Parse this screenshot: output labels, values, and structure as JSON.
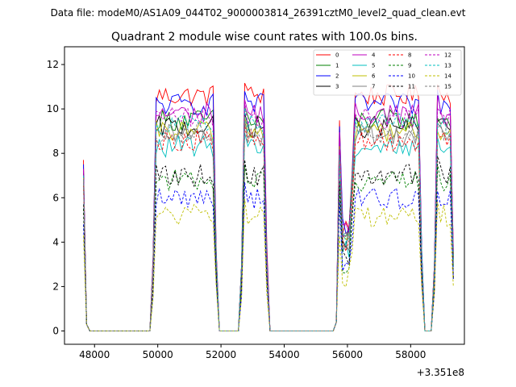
{
  "chart_data": {
    "type": "line",
    "suptitle": "Data file: modeM0/AS1A09_044T02_9000003814_26391cztM0_level2_quad_clean.evt",
    "title": "Quadrant 2 module wise count rates with 100.0s bins.",
    "xlabel": "",
    "ylabel": "",
    "x_offset_text": "+3.351e8",
    "xlim": [
      47050,
      59700
    ],
    "ylim": [
      -0.6,
      12.8
    ],
    "x_ticks": [
      48000,
      50000,
      52000,
      54000,
      56000,
      58000
    ],
    "y_ticks": [
      0,
      2,
      4,
      6,
      8,
      10,
      12
    ],
    "legend_location": "top-right",
    "legend_columns": 4,
    "segments": [
      {
        "start": 47650,
        "end": 47750,
        "edge": "start"
      },
      {
        "start": 49850,
        "end": 51850,
        "edge": "both"
      },
      {
        "start": 52650,
        "end": 53450,
        "edge": "both"
      },
      {
        "start": 55650,
        "end": 58350,
        "edge": "both"
      },
      {
        "start": 58750,
        "end": 59350,
        "edge": "both"
      }
    ],
    "series": [
      {
        "name": "0",
        "color": "#ff0000",
        "dash": "solid",
        "level": 10.6,
        "first": 7.7
      },
      {
        "name": "1",
        "color": "#008000",
        "dash": "solid",
        "level": 9.5,
        "first": 7.0
      },
      {
        "name": "2",
        "color": "#0000ff",
        "dash": "solid",
        "level": 10.2,
        "first": 7.5
      },
      {
        "name": "3",
        "color": "#000000",
        "dash": "solid",
        "level": 9.2,
        "first": 7.2
      },
      {
        "name": "4",
        "color": "#bf00bf",
        "dash": "solid",
        "level": 9.8,
        "first": 7.3
      },
      {
        "name": "5",
        "color": "#00bfbf",
        "dash": "solid",
        "level": 8.3,
        "first": 6.8
      },
      {
        "name": "6",
        "color": "#bfbf00",
        "dash": "solid",
        "level": 9.0,
        "first": 6.9
      },
      {
        "name": "7",
        "color": "#808080",
        "dash": "solid",
        "level": 8.8,
        "first": 6.7
      },
      {
        "name": "8",
        "color": "#ff0000",
        "dash": "dashed",
        "level": 8.6,
        "first": 6.6
      },
      {
        "name": "9",
        "color": "#008000",
        "dash": "dashed",
        "level": 6.8,
        "first": 5.5
      },
      {
        "name": "10",
        "color": "#0000ff",
        "dash": "dashed",
        "level": 6.0,
        "first": 4.8
      },
      {
        "name": "11",
        "color": "#000000",
        "dash": "dashed",
        "level": 7.0,
        "first": 5.7
      },
      {
        "name": "12",
        "color": "#bf00bf",
        "dash": "dashed",
        "level": 9.6,
        "first": 7.2
      },
      {
        "name": "13",
        "color": "#00bfbf",
        "dash": "dashed",
        "level": 9.3,
        "first": 7.0
      },
      {
        "name": "14",
        "color": "#bfbf00",
        "dash": "dashed",
        "level": 5.2,
        "first": 4.3
      },
      {
        "name": "15",
        "color": "#808080",
        "dash": "dashed",
        "level": 8.9,
        "first": 6.8
      }
    ]
  }
}
